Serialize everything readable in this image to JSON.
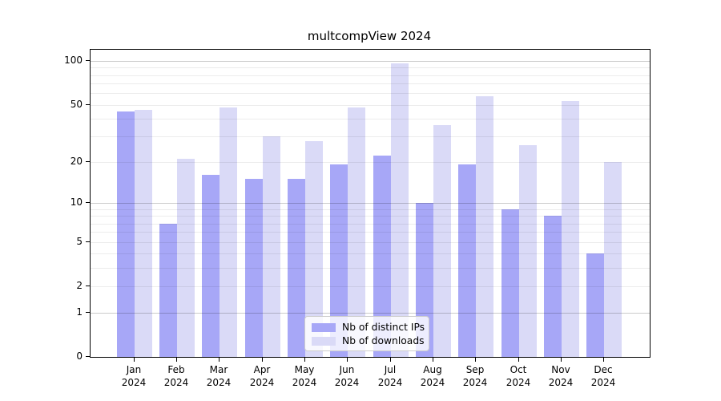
{
  "title": "multcompView 2024",
  "chart_data": {
    "type": "bar",
    "title": "multcompView 2024",
    "xlabel": "",
    "ylabel": "",
    "year": "2024",
    "categories": [
      "Jan",
      "Feb",
      "Mar",
      "Apr",
      "May",
      "Jun",
      "Jul",
      "Aug",
      "Sep",
      "Oct",
      "Nov",
      "Dec"
    ],
    "series": [
      {
        "name": "Nb of distinct IPs",
        "color": "#a7a7f7",
        "values": [
          45,
          7,
          16,
          15,
          15,
          19,
          22,
          10,
          19,
          9,
          8,
          4
        ]
      },
      {
        "name": "Nb of downloads",
        "color": "#dadaf7",
        "values": [
          46,
          21,
          48,
          30,
          28,
          48,
          96,
          36,
          57,
          26,
          53,
          20
        ]
      }
    ],
    "yscale": "log1p",
    "ylim": [
      0,
      110
    ],
    "yticks": [
      0,
      1,
      2,
      5,
      10,
      20,
      50,
      100
    ],
    "grid": {
      "major": [
        1,
        10,
        100
      ],
      "minor": [
        2,
        3,
        4,
        5,
        6,
        7,
        8,
        9,
        20,
        30,
        40,
        50,
        60,
        70,
        80,
        90
      ]
    },
    "legend": {
      "position": "bottom-center",
      "entries": [
        "Nb of distinct IPs",
        "Nb of downloads"
      ]
    }
  }
}
